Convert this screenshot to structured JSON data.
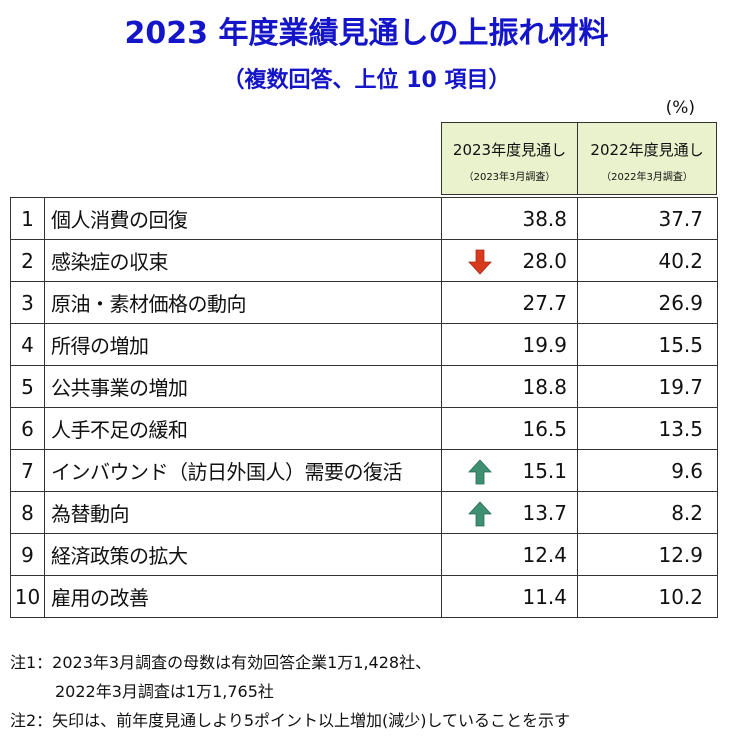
{
  "title": "2023 年度業績見通しの上振れ材料",
  "subtitle": "（複数回答、上位 10 項目）",
  "unit": "(%)",
  "header": {
    "col1_line1": "2023年度見通し",
    "col1_line2": "（2023年3月調査）",
    "col2_line1": "2022年度見通し",
    "col2_line2": "（2022年3月調査）"
  },
  "colors": {
    "title": "#1414c8",
    "header_bg": "#e9f2cc",
    "arrow_down": "#d83a1e",
    "arrow_up": "#3f8f72"
  },
  "chart_data": {
    "type": "table",
    "series": [
      {
        "name": "2023年度見通し",
        "values": [
          38.8,
          28.0,
          27.7,
          19.9,
          18.8,
          16.5,
          15.1,
          13.7,
          12.4,
          11.4
        ]
      },
      {
        "name": "2022年度見通し",
        "values": [
          37.7,
          40.2,
          26.9,
          15.5,
          19.7,
          13.5,
          9.6,
          8.2,
          12.9,
          10.2
        ]
      }
    ],
    "rows": [
      {
        "rank": "1",
        "item": "個人消費の回復",
        "v2023": "38.8",
        "v2022": "37.7",
        "arrow": ""
      },
      {
        "rank": "2",
        "item": "感染症の収束",
        "v2023": "28.0",
        "v2022": "40.2",
        "arrow": "down"
      },
      {
        "rank": "3",
        "item": "原油・素材価格の動向",
        "v2023": "27.7",
        "v2022": "26.9",
        "arrow": ""
      },
      {
        "rank": "4",
        "item": "所得の増加",
        "v2023": "19.9",
        "v2022": "15.5",
        "arrow": ""
      },
      {
        "rank": "5",
        "item": "公共事業の増加",
        "v2023": "18.8",
        "v2022": "19.7",
        "arrow": ""
      },
      {
        "rank": "6",
        "item": "人手不足の緩和",
        "v2023": "16.5",
        "v2022": "13.5",
        "arrow": ""
      },
      {
        "rank": "7",
        "item": "インバウンド（訪日外国人）需要の復活",
        "v2023": "15.1",
        "v2022": "9.6",
        "arrow": "up"
      },
      {
        "rank": "8",
        "item": "為替動向",
        "v2023": "13.7",
        "v2022": "8.2",
        "arrow": "up"
      },
      {
        "rank": "9",
        "item": "経済政策の拡大",
        "v2023": "12.4",
        "v2022": "12.9",
        "arrow": ""
      },
      {
        "rank": "10",
        "item": "雇用の改善",
        "v2023": "11.4",
        "v2022": "10.2",
        "arrow": ""
      }
    ]
  },
  "notes": {
    "note1_line1": "注1：2023年3月調査の母数は有効回答企業1万1,428社、",
    "note1_line2": "2022年3月調査は1万1,765社",
    "note2": "注2：矢印は、前年度見通しより5ポイント以上増加(減少)していることを示す"
  }
}
